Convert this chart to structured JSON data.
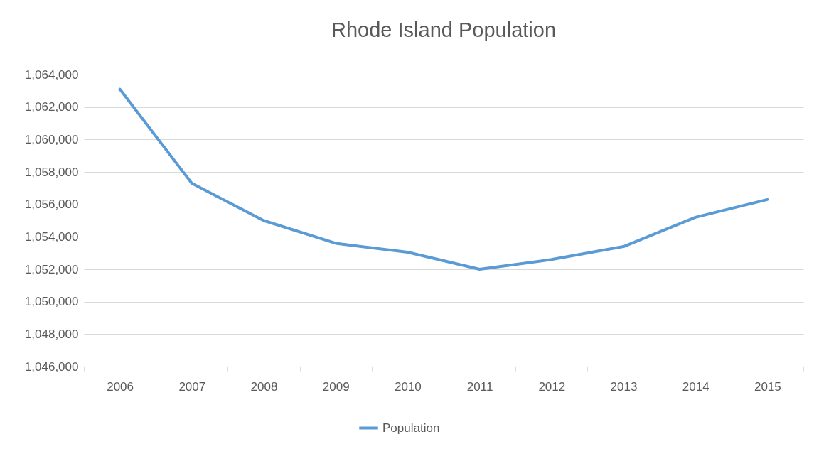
{
  "chart_data": {
    "type": "line",
    "title": "Rhode Island Population",
    "categories": [
      "2006",
      "2007",
      "2008",
      "2009",
      "2010",
      "2011",
      "2012",
      "2013",
      "2014",
      "2015"
    ],
    "series": [
      {
        "name": "Population",
        "color": "#5b9bd5",
        "values": [
          1063100,
          1057300,
          1055000,
          1053600,
          1053050,
          1052000,
          1052600,
          1053400,
          1055200,
          1056300
        ]
      }
    ],
    "ylim": [
      1046000,
      1064000
    ],
    "yticks": [
      {
        "value": 1046000,
        "label": "1,046,000"
      },
      {
        "value": 1048000,
        "label": "1,048,000"
      },
      {
        "value": 1050000,
        "label": "1,050,000"
      },
      {
        "value": 1052000,
        "label": "1,052,000"
      },
      {
        "value": 1054000,
        "label": "1,054,000"
      },
      {
        "value": 1056000,
        "label": "1,056,000"
      },
      {
        "value": 1058000,
        "label": "1,058,000"
      },
      {
        "value": 1060000,
        "label": "1,060,000"
      },
      {
        "value": 1062000,
        "label": "1,062,000"
      },
      {
        "value": 1064000,
        "label": "1,064,000"
      }
    ],
    "grid": "y",
    "legend": "bottom"
  }
}
